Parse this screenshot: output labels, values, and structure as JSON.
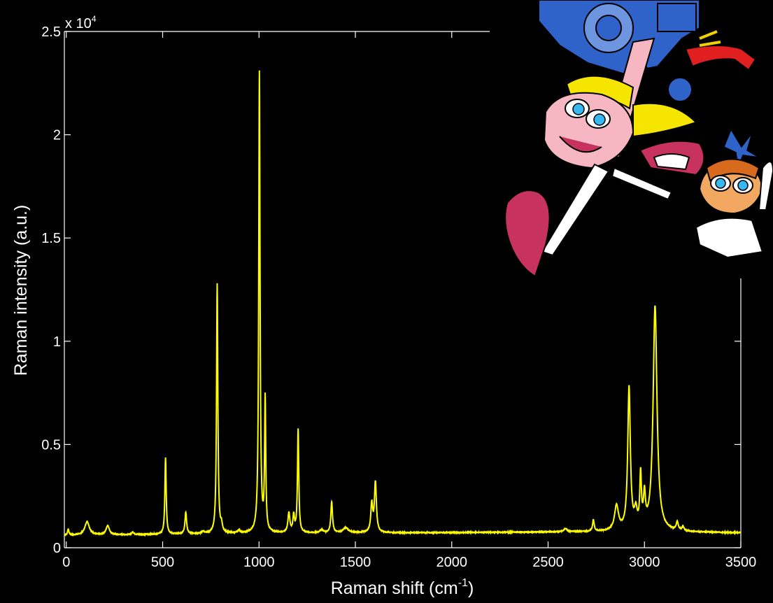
{
  "chart_data": {
    "type": "line",
    "title": "",
    "xlabel_main": "Raman shift (cm",
    "xlabel_sup": "-1",
    "xlabel_end": ")",
    "ylabel": "Raman intensity (a.u.)",
    "y_multiplier_base": "x 10",
    "y_multiplier_exp": "4",
    "xlim": [
      -10,
      3500
    ],
    "ylim": [
      0,
      25000
    ],
    "x_ticks": [
      0,
      500,
      1000,
      1500,
      2000,
      2500,
      3000,
      3500
    ],
    "x_tick_labels": [
      "0",
      "500",
      "1000",
      "1500",
      "2000",
      "2500",
      "3000",
      "3500"
    ],
    "y_ticks": [
      0,
      5000,
      10000,
      15000,
      20000,
      25000
    ],
    "y_tick_labels": [
      "0",
      "0.5",
      "1",
      "1.5",
      "2",
      "2.5"
    ],
    "grid": false,
    "series": [
      {
        "color": "#ffff00",
        "baseline": [
          [
            -10,
            600
          ],
          [
            500,
            650
          ],
          [
            1000,
            700
          ],
          [
            1500,
            720
          ],
          [
            2000,
            730
          ],
          [
            2500,
            760
          ],
          [
            3000,
            780
          ],
          [
            3500,
            720
          ]
        ],
        "peaks": [
          {
            "x": 10,
            "h": 300,
            "w": 4
          },
          {
            "x": 108,
            "h": 650,
            "w": 14
          },
          {
            "x": 215,
            "h": 450,
            "w": 10
          },
          {
            "x": 345,
            "h": 120,
            "w": 6
          },
          {
            "x": 515,
            "h": 3700,
            "w": 4
          },
          {
            "x": 620,
            "h": 1050,
            "w": 5
          },
          {
            "x": 710,
            "h": 100,
            "w": 8
          },
          {
            "x": 783,
            "h": 12100,
            "w": 4
          },
          {
            "x": 805,
            "h": 350,
            "w": 5
          },
          {
            "x": 895,
            "h": 120,
            "w": 8
          },
          {
            "x": 1002,
            "h": 22300,
            "w": 4
          },
          {
            "x": 1032,
            "h": 6400,
            "w": 3.5
          },
          {
            "x": 1155,
            "h": 950,
            "w": 6
          },
          {
            "x": 1180,
            "h": 800,
            "w": 5
          },
          {
            "x": 1203,
            "h": 5000,
            "w": 4
          },
          {
            "x": 1325,
            "h": 150,
            "w": 10
          },
          {
            "x": 1377,
            "h": 1500,
            "w": 5
          },
          {
            "x": 1450,
            "h": 250,
            "w": 15
          },
          {
            "x": 1585,
            "h": 1350,
            "w": 6
          },
          {
            "x": 1604,
            "h": 2400,
            "w": 6
          },
          {
            "x": 2590,
            "h": 150,
            "w": 10
          },
          {
            "x": 2735,
            "h": 550,
            "w": 5
          },
          {
            "x": 2855,
            "h": 1200,
            "w": 12
          },
          {
            "x": 2920,
            "h": 6900,
            "w": 8
          },
          {
            "x": 2955,
            "h": 800,
            "w": 8
          },
          {
            "x": 2980,
            "h": 2500,
            "w": 5
          },
          {
            "x": 3000,
            "h": 1500,
            "w": 6
          },
          {
            "x": 3055,
            "h": 10900,
            "w": 12
          },
          {
            "x": 3170,
            "h": 400,
            "w": 6
          },
          {
            "x": 3200,
            "h": 200,
            "w": 6
          }
        ]
      }
    ]
  },
  "decoration": {
    "cartoon": "cartoon-characters-illustration",
    "colors": {
      "skin": "#f7b7c2",
      "hair": "#f5e500",
      "coat": "#ffffff",
      "boot": "#c8325e",
      "robot": "#2f63c9",
      "eye": "#38b8f0"
    }
  }
}
